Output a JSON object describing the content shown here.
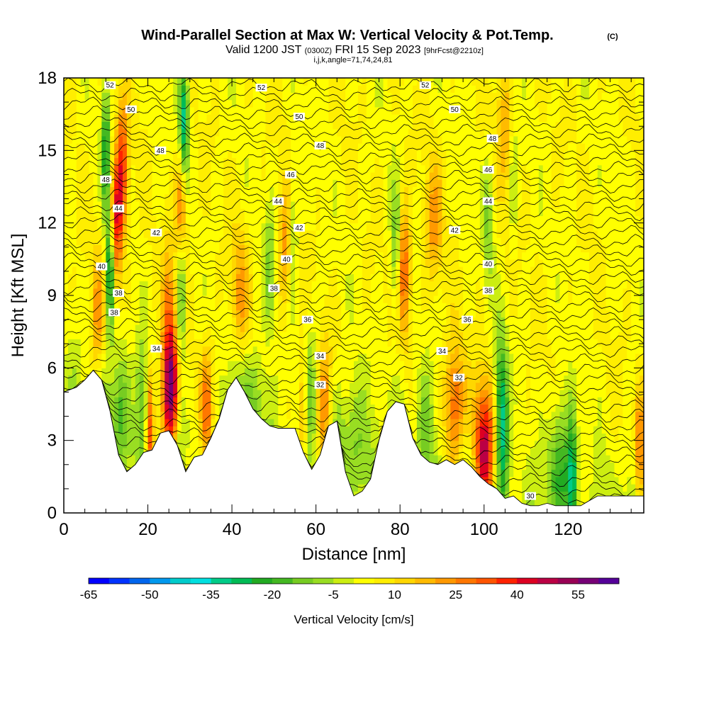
{
  "header": {
    "title": "Wind-Parallel Section at Max W: Vertical Velocity & Pot.Temp.",
    "copyright": "(C)",
    "valid_prefix": "Valid 1200 JST",
    "valid_utc": "(0300Z)",
    "valid_date": "FRI 15 Sep 2023",
    "forecast": "[9hrFcst@2210z]",
    "indices": "i,j,k,angle=71,74,24,81"
  },
  "chart_data": {
    "type": "heatmap",
    "xlabel": "Distance [nm]",
    "ylabel": "Height [Kft MSL]",
    "xlim": [
      0,
      138
    ],
    "ylim": [
      0,
      18
    ],
    "x_ticks": [
      0,
      20,
      40,
      60,
      80,
      100,
      120
    ],
    "y_ticks": [
      0,
      3,
      6,
      9,
      12,
      15,
      18
    ],
    "colorbar": {
      "label": "Vertical Velocity [cm/s]",
      "min": -65,
      "max": 60,
      "step": 5,
      "tick_labels": [
        -65,
        -50,
        -35,
        -20,
        -5,
        10,
        25,
        40,
        55
      ],
      "colors": [
        "#0000ff",
        "#0033ff",
        "#0066ee",
        "#0099ee",
        "#00cccc",
        "#00e0e0",
        "#00cc88",
        "#00bb55",
        "#22aa22",
        "#44b822",
        "#77cc22",
        "#99dd22",
        "#ccee11",
        "#ffff00",
        "#ffee00",
        "#ffd700",
        "#ffbb00",
        "#ff9900",
        "#ff7700",
        "#ff5500",
        "#ff2200",
        "#dd0022",
        "#bb0044",
        "#990055",
        "#770077",
        "#550099"
      ]
    },
    "theta_contour_labels": [
      {
        "value": "52",
        "x": 11,
        "y": 17.7
      },
      {
        "value": "52",
        "x": 47,
        "y": 17.6
      },
      {
        "value": "52",
        "x": 86,
        "y": 17.7
      },
      {
        "value": "50",
        "x": 16,
        "y": 16.7
      },
      {
        "value": "50",
        "x": 56,
        "y": 16.4
      },
      {
        "value": "50",
        "x": 93,
        "y": 16.7
      },
      {
        "value": "48",
        "x": 23,
        "y": 15.0
      },
      {
        "value": "48",
        "x": 61,
        "y": 15.2
      },
      {
        "value": "48",
        "x": 102,
        "y": 15.5
      },
      {
        "value": "48",
        "x": 10,
        "y": 13.8
      },
      {
        "value": "46",
        "x": 54,
        "y": 14.0
      },
      {
        "value": "46",
        "x": 101,
        "y": 14.2
      },
      {
        "value": "44",
        "x": 13,
        "y": 12.6
      },
      {
        "value": "44",
        "x": 51,
        "y": 12.9
      },
      {
        "value": "44",
        "x": 101,
        "y": 12.9
      },
      {
        "value": "42",
        "x": 22,
        "y": 11.6
      },
      {
        "value": "42",
        "x": 56,
        "y": 11.8
      },
      {
        "value": "42",
        "x": 93,
        "y": 11.7
      },
      {
        "value": "40",
        "x": 9,
        "y": 10.2
      },
      {
        "value": "40",
        "x": 53,
        "y": 10.5
      },
      {
        "value": "40",
        "x": 101,
        "y": 10.3
      },
      {
        "value": "38",
        "x": 13,
        "y": 9.1
      },
      {
        "value": "38",
        "x": 50,
        "y": 9.3
      },
      {
        "value": "38",
        "x": 101,
        "y": 9.2
      },
      {
        "value": "38",
        "x": 12,
        "y": 8.3
      },
      {
        "value": "36",
        "x": 58,
        "y": 8.0
      },
      {
        "value": "36",
        "x": 96,
        "y": 8.0
      },
      {
        "value": "34",
        "x": 22,
        "y": 6.8
      },
      {
        "value": "34",
        "x": 61,
        "y": 6.5
      },
      {
        "value": "34",
        "x": 90,
        "y": 6.7
      },
      {
        "value": "32",
        "x": 61,
        "y": 5.3
      },
      {
        "value": "32",
        "x": 94,
        "y": 5.6
      },
      {
        "value": "30",
        "x": 111,
        "y": 0.7
      }
    ],
    "terrain": [
      [
        0,
        5.0
      ],
      [
        3,
        5.2
      ],
      [
        5,
        5.5
      ],
      [
        7,
        5.9
      ],
      [
        9,
        5.5
      ],
      [
        11,
        4.2
      ],
      [
        13,
        2.4
      ],
      [
        15,
        1.7
      ],
      [
        17,
        2.0
      ],
      [
        19,
        2.5
      ],
      [
        21,
        2.6
      ],
      [
        23,
        3.3
      ],
      [
        25,
        3.4
      ],
      [
        27,
        2.8
      ],
      [
        29,
        1.7
      ],
      [
        31,
        2.3
      ],
      [
        33,
        2.4
      ],
      [
        35,
        3.1
      ],
      [
        37,
        3.9
      ],
      [
        39,
        5.1
      ],
      [
        41,
        5.6
      ],
      [
        43,
        5.0
      ],
      [
        45,
        4.3
      ],
      [
        47,
        3.9
      ],
      [
        49,
        3.6
      ],
      [
        51,
        3.5
      ],
      [
        53,
        3.5
      ],
      [
        55,
        3.5
      ],
      [
        57,
        2.5
      ],
      [
        59,
        1.8
      ],
      [
        61,
        2.4
      ],
      [
        63,
        3.6
      ],
      [
        65,
        3.8
      ],
      [
        67,
        1.7
      ],
      [
        69,
        0.7
      ],
      [
        71,
        0.9
      ],
      [
        73,
        1.4
      ],
      [
        75,
        3.0
      ],
      [
        77,
        4.2
      ],
      [
        79,
        4.6
      ],
      [
        81,
        4.5
      ],
      [
        83,
        3.1
      ],
      [
        85,
        2.4
      ],
      [
        87,
        2.1
      ],
      [
        89,
        2.0
      ],
      [
        91,
        2.2
      ],
      [
        93,
        2.0
      ],
      [
        95,
        2.2
      ],
      [
        97,
        1.9
      ],
      [
        99,
        1.5
      ],
      [
        101,
        1.2
      ],
      [
        103,
        1.0
      ],
      [
        105,
        0.6
      ],
      [
        107,
        0.7
      ],
      [
        109,
        0.4
      ],
      [
        111,
        0.3
      ],
      [
        113,
        0.3
      ],
      [
        115,
        0.4
      ],
      [
        117,
        0.3
      ],
      [
        119,
        0.3
      ],
      [
        121,
        0.3
      ],
      [
        123,
        0.3
      ],
      [
        125,
        0.5
      ],
      [
        127,
        0.7
      ],
      [
        129,
        0.7
      ],
      [
        131,
        0.7
      ],
      [
        133,
        0.7
      ],
      [
        135,
        0.7
      ],
      [
        138,
        0.7
      ]
    ],
    "updraft_cores": [
      {
        "x": 12.5,
        "y": 12.0,
        "w": 1.6,
        "v": 35
      },
      {
        "x": 14.0,
        "y": 14.5,
        "w": 1.4,
        "v": 30
      },
      {
        "x": 25.5,
        "y": 4.8,
        "w": 2.2,
        "v": 58
      },
      {
        "x": 25.0,
        "y": 8.5,
        "w": 1.5,
        "v": 20
      },
      {
        "x": 28.0,
        "y": 13.0,
        "w": 1.3,
        "v": 30
      },
      {
        "x": 20.5,
        "y": 3.5,
        "w": 1.0,
        "v": 38
      },
      {
        "x": 34.0,
        "y": 4.0,
        "w": 1.5,
        "v": 28
      },
      {
        "x": 100.0,
        "y": 2.6,
        "w": 2.5,
        "v": 45
      },
      {
        "x": 93.0,
        "y": 4.3,
        "w": 2.5,
        "v": 28
      },
      {
        "x": 81.0,
        "y": 10.0,
        "w": 1.5,
        "v": 30
      },
      {
        "x": 62.0,
        "y": 4.2,
        "w": 1.8,
        "v": 22
      },
      {
        "x": 57.0,
        "y": 4.0,
        "w": 1.2,
        "v": 25
      },
      {
        "x": 42.0,
        "y": 9.0,
        "w": 2.0,
        "v": 18
      },
      {
        "x": 88.0,
        "y": 12.0,
        "w": 2.0,
        "v": 18
      },
      {
        "x": 137.0,
        "y": 2.5,
        "w": 1.0,
        "v": 25
      },
      {
        "x": 53.0,
        "y": 11.0,
        "w": 2.0,
        "v": 20
      },
      {
        "x": 105.0,
        "y": 16.0,
        "w": 2.0,
        "v": 15
      },
      {
        "x": 8.0,
        "y": 8.0,
        "w": 1.5,
        "v": 18
      }
    ],
    "downdraft_cores": [
      {
        "x": 11.0,
        "y": 10.0,
        "w": 1.0,
        "v": -40
      },
      {
        "x": 10.0,
        "y": 15.0,
        "w": 1.0,
        "v": -30
      },
      {
        "x": 28.5,
        "y": 16.0,
        "w": 1.2,
        "v": -42
      },
      {
        "x": 28.0,
        "y": 9.0,
        "w": 1.0,
        "v": -25
      },
      {
        "x": 13.5,
        "y": 4.3,
        "w": 2.2,
        "v": -22
      },
      {
        "x": 19.0,
        "y": 4.5,
        "w": 2.0,
        "v": -20
      },
      {
        "x": 27.5,
        "y": 4.0,
        "w": 1.5,
        "v": -18
      },
      {
        "x": 45.0,
        "y": 4.5,
        "w": 3.0,
        "v": -14
      },
      {
        "x": 54.5,
        "y": 11.5,
        "w": 1.2,
        "v": -20
      },
      {
        "x": 49.0,
        "y": 10.0,
        "w": 1.5,
        "v": -15
      },
      {
        "x": 58.5,
        "y": 5.0,
        "w": 1.8,
        "v": -18
      },
      {
        "x": 69.0,
        "y": 3.0,
        "w": 3.5,
        "v": -16
      },
      {
        "x": 79.0,
        "y": 11.0,
        "w": 1.2,
        "v": -18
      },
      {
        "x": 86.0,
        "y": 3.5,
        "w": 2.0,
        "v": -16
      },
      {
        "x": 104.0,
        "y": 5.0,
        "w": 1.5,
        "v": -26
      },
      {
        "x": 104.5,
        "y": 2.5,
        "w": 1.5,
        "v": -24
      },
      {
        "x": 118.0,
        "y": 2.0,
        "w": 3.0,
        "v": -22
      },
      {
        "x": 121.0,
        "y": 1.5,
        "w": 1.2,
        "v": -28
      },
      {
        "x": 101.0,
        "y": 12.0,
        "w": 1.2,
        "v": -15
      },
      {
        "x": 107.0,
        "y": 14.0,
        "w": 1.0,
        "v": -12
      }
    ]
  }
}
